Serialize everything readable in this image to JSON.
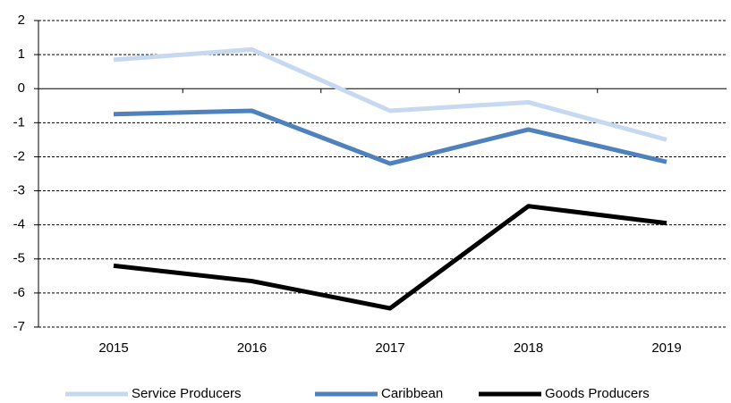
{
  "chart_data": {
    "type": "line",
    "categories": [
      "2015",
      "2016",
      "2017",
      "2018",
      "2019"
    ],
    "series": [
      {
        "name": "Service Producers",
        "color": "#c6d9f0",
        "values": [
          0.85,
          1.15,
          -0.65,
          -0.4,
          -1.5
        ]
      },
      {
        "name": "Caribbean",
        "color": "#4f81bd",
        "values": [
          -0.75,
          -0.65,
          -2.2,
          -1.2,
          -2.15
        ]
      },
      {
        "name": "Goods Producers",
        "color": "#000000",
        "values": [
          -5.2,
          -5.65,
          -6.45,
          -3.45,
          -3.95
        ]
      }
    ],
    "ylim": [
      -7,
      2
    ],
    "yticks": [
      -7,
      -6,
      -5,
      -4,
      -3,
      -2,
      -1,
      0,
      1,
      2
    ],
    "grid": true,
    "legend": "bottom"
  }
}
